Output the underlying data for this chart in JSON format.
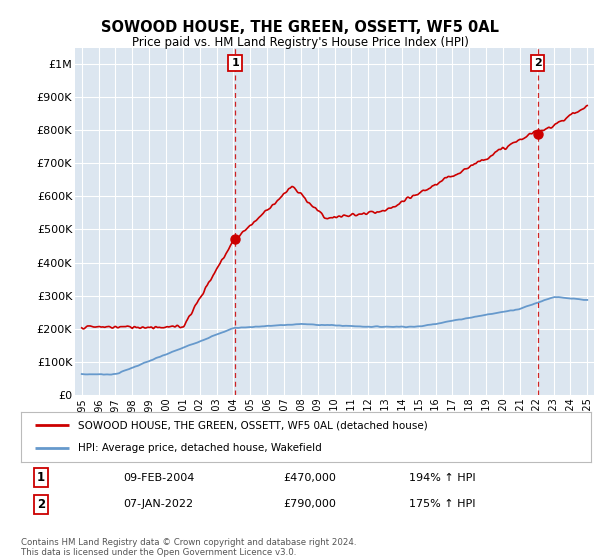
{
  "title": "SOWOOD HOUSE, THE GREEN, OSSETT, WF5 0AL",
  "subtitle": "Price paid vs. HM Land Registry's House Price Index (HPI)",
  "red_label": "SOWOOD HOUSE, THE GREEN, OSSETT, WF5 0AL (detached house)",
  "blue_label": "HPI: Average price, detached house, Wakefield",
  "annotation1_date": "09-FEB-2004",
  "annotation1_price": "£470,000",
  "annotation1_hpi": "194% ↑ HPI",
  "annotation2_date": "07-JAN-2022",
  "annotation2_price": "£790,000",
  "annotation2_hpi": "175% ↑ HPI",
  "footer": "Contains HM Land Registry data © Crown copyright and database right 2024.\nThis data is licensed under the Open Government Licence v3.0.",
  "ylim": [
    0,
    1050000
  ],
  "yticks": [
    0,
    100000,
    200000,
    300000,
    400000,
    500000,
    600000,
    700000,
    800000,
    900000,
    1000000
  ],
  "ytick_labels": [
    "£0",
    "£100K",
    "£200K",
    "£300K",
    "£400K",
    "£500K",
    "£600K",
    "£700K",
    "£800K",
    "£900K",
    "£1M"
  ],
  "background_color": "#ffffff",
  "plot_bg_color": "#dce6f0",
  "grid_color": "#ffffff",
  "red_color": "#cc0000",
  "blue_color": "#6699cc",
  "sale1_x": 2004.1,
  "sale1_y": 470000,
  "sale2_x": 2022.05,
  "sale2_y": 790000,
  "xmin": 1994.6,
  "xmax": 2025.4,
  "xtick_start": 1995,
  "xtick_end": 2025
}
